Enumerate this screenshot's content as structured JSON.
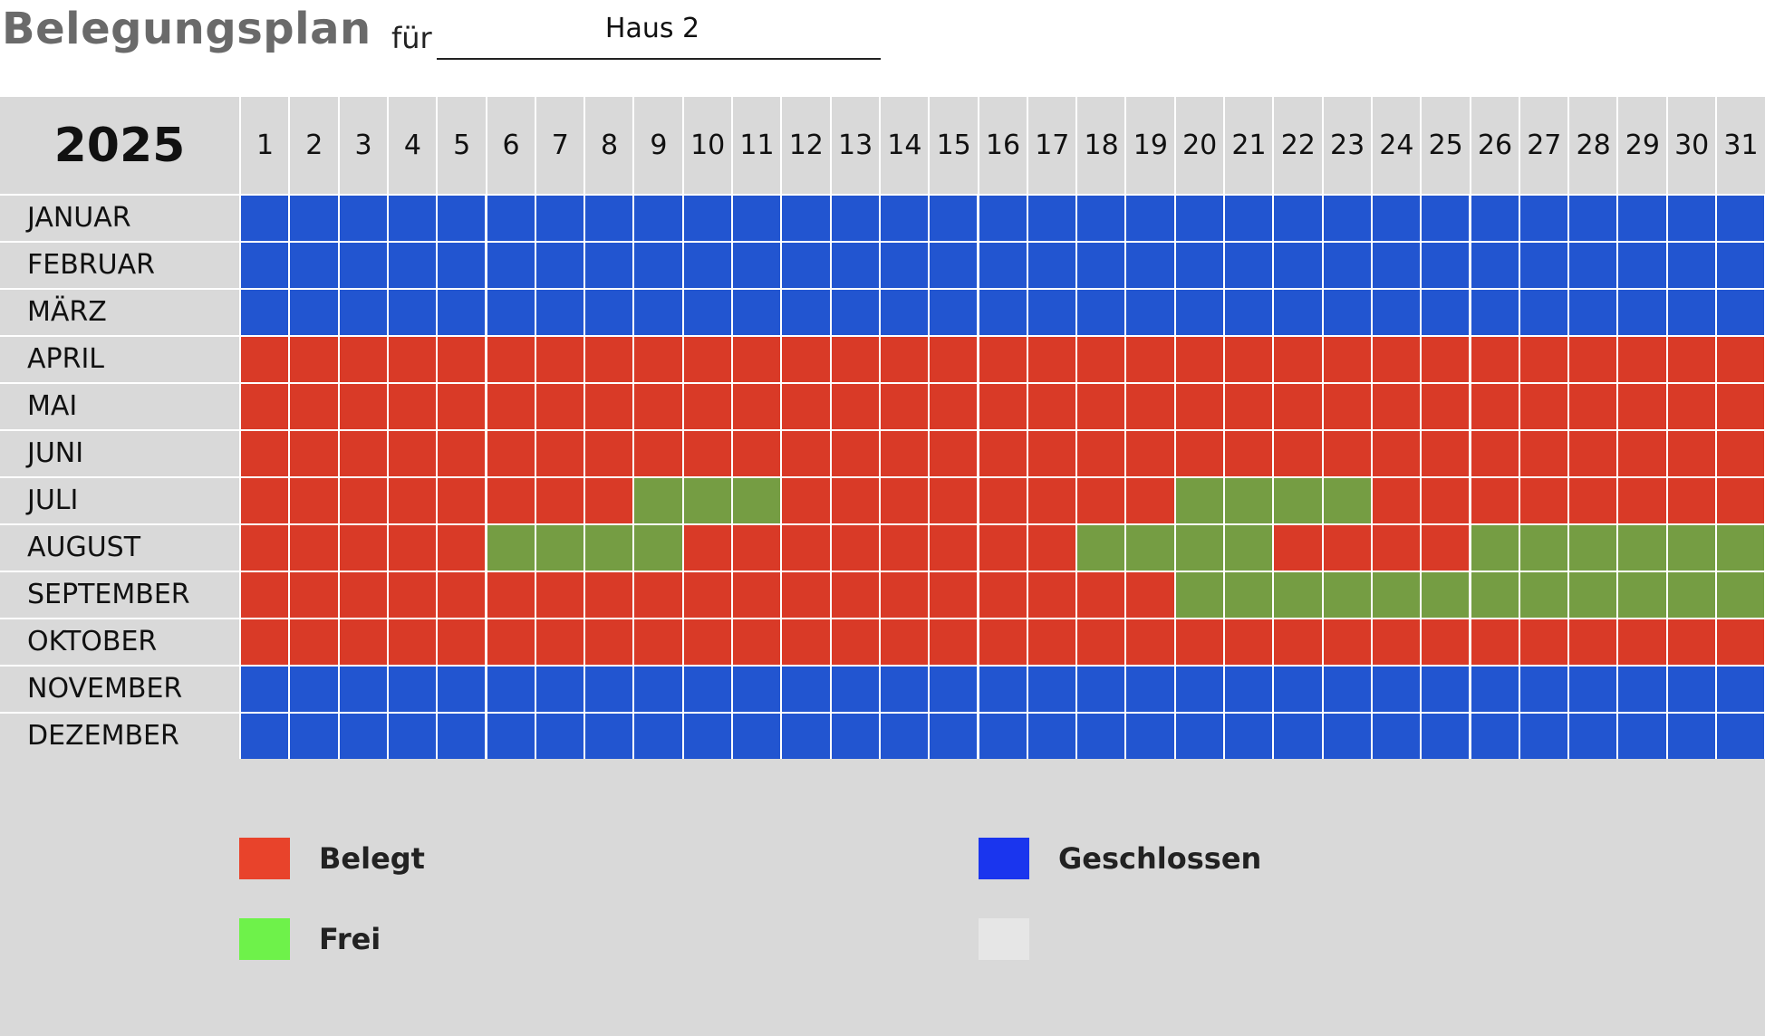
{
  "header": {
    "title": "Belegungsplan",
    "for_label": "für",
    "house": "Haus 2"
  },
  "calendar": {
    "year": "2025",
    "days": [
      "1",
      "2",
      "3",
      "4",
      "5",
      "6",
      "7",
      "8",
      "9",
      "10",
      "11",
      "12",
      "13",
      "14",
      "15",
      "16",
      "17",
      "18",
      "19",
      "20",
      "21",
      "22",
      "23",
      "24",
      "25",
      "26",
      "27",
      "28",
      "29",
      "30",
      "31"
    ],
    "months": [
      {
        "name": "JANUAR",
        "state": "closed",
        "free_days": []
      },
      {
        "name": "FEBRUAR",
        "state": "closed",
        "free_days": []
      },
      {
        "name": "MÄRZ",
        "state": "closed",
        "free_days": []
      },
      {
        "name": "APRIL",
        "state": "open",
        "free_days": []
      },
      {
        "name": "MAI",
        "state": "open",
        "free_days": []
      },
      {
        "name": "JUNI",
        "state": "open",
        "free_days": []
      },
      {
        "name": "JULI",
        "state": "open",
        "free_days": [
          9,
          10,
          11,
          20,
          21,
          22,
          23
        ]
      },
      {
        "name": "AUGUST",
        "state": "open",
        "free_days": [
          6,
          7,
          8,
          9,
          18,
          19,
          20,
          21,
          26,
          27,
          28,
          29,
          30,
          31
        ]
      },
      {
        "name": "SEPTEMBER",
        "state": "open",
        "free_days": [
          20,
          21,
          22,
          23,
          24,
          25,
          26,
          27,
          28,
          29,
          30,
          31
        ]
      },
      {
        "name": "OKTOBER",
        "state": "open",
        "free_days": []
      },
      {
        "name": "NOVEMBER",
        "state": "closed",
        "free_days": []
      },
      {
        "name": "DEZEMBER",
        "state": "closed",
        "free_days": []
      }
    ]
  },
  "legend": {
    "occupied": "Belegt",
    "free": "Frei",
    "closed": "Geschlossen"
  },
  "colors": {
    "occupied": "#d93a27",
    "free": "#759d43",
    "closed": "#2255d0",
    "legend_occupied": "#e8432b",
    "legend_free": "#6ef24a",
    "legend_closed": "#1a35ee",
    "legend_empty": "#e6e6e6",
    "title": "#6a6a6a"
  }
}
